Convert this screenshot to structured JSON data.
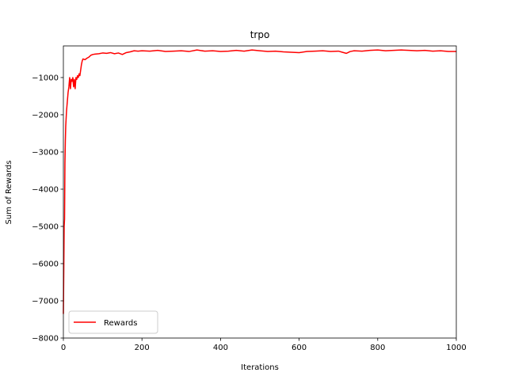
{
  "chart_data": {
    "type": "line",
    "title": "trpo",
    "xlabel": "Iterations",
    "ylabel": "Sum of Rewards",
    "xlim": [
      0,
      1000
    ],
    "ylim": [
      -8000,
      -150
    ],
    "xticks": [
      0,
      200,
      400,
      600,
      800,
      1000
    ],
    "yticks": [
      -8000,
      -7000,
      -6000,
      -5000,
      -4000,
      -3000,
      -2000,
      -1000
    ],
    "xtick_labels": [
      "0",
      "200",
      "400",
      "600",
      "800",
      "1000"
    ],
    "ytick_labels": [
      "−8000",
      "−7000",
      "−6000",
      "−5000",
      "−4000",
      "−3000",
      "−2000",
      "−1000"
    ],
    "grid": false,
    "legend": {
      "position": "lower-left",
      "entries": [
        "Rewards"
      ]
    },
    "series": [
      {
        "name": "Rewards",
        "color": "#ff0000",
        "x": [
          0,
          1,
          2,
          3,
          4,
          5,
          6,
          8,
          10,
          12,
          14,
          16,
          18,
          20,
          22,
          24,
          26,
          28,
          30,
          32,
          34,
          36,
          38,
          40,
          42,
          44,
          46,
          48,
          50,
          55,
          60,
          65,
          70,
          75,
          80,
          90,
          100,
          110,
          120,
          130,
          140,
          150,
          160,
          170,
          180,
          190,
          200,
          220,
          240,
          260,
          280,
          300,
          320,
          340,
          360,
          380,
          400,
          420,
          440,
          460,
          480,
          500,
          520,
          540,
          560,
          580,
          600,
          620,
          640,
          660,
          680,
          700,
          710,
          720,
          730,
          740,
          760,
          780,
          800,
          820,
          840,
          860,
          880,
          900,
          920,
          940,
          960,
          980,
          1000
        ],
        "y": [
          -7350,
          -6200,
          -5000,
          -4800,
          -3300,
          -2700,
          -2300,
          -1900,
          -1650,
          -1400,
          -1250,
          -1000,
          -1300,
          -1050,
          -1100,
          -1000,
          -1250,
          -1050,
          -1300,
          -1000,
          -1050,
          -950,
          -1000,
          -900,
          -950,
          -800,
          -650,
          -550,
          -500,
          -520,
          -480,
          -450,
          -400,
          -380,
          -370,
          -360,
          -340,
          -350,
          -330,
          -360,
          -340,
          -380,
          -330,
          -310,
          -280,
          -290,
          -280,
          -290,
          -270,
          -300,
          -290,
          -280,
          -300,
          -260,
          -290,
          -280,
          -300,
          -290,
          -270,
          -290,
          -260,
          -280,
          -300,
          -290,
          -310,
          -320,
          -330,
          -300,
          -290,
          -280,
          -300,
          -290,
          -320,
          -350,
          -300,
          -280,
          -290,
          -270,
          -260,
          -280,
          -270,
          -260,
          -270,
          -280,
          -270,
          -290,
          -280,
          -300,
          -300
        ]
      }
    ]
  }
}
